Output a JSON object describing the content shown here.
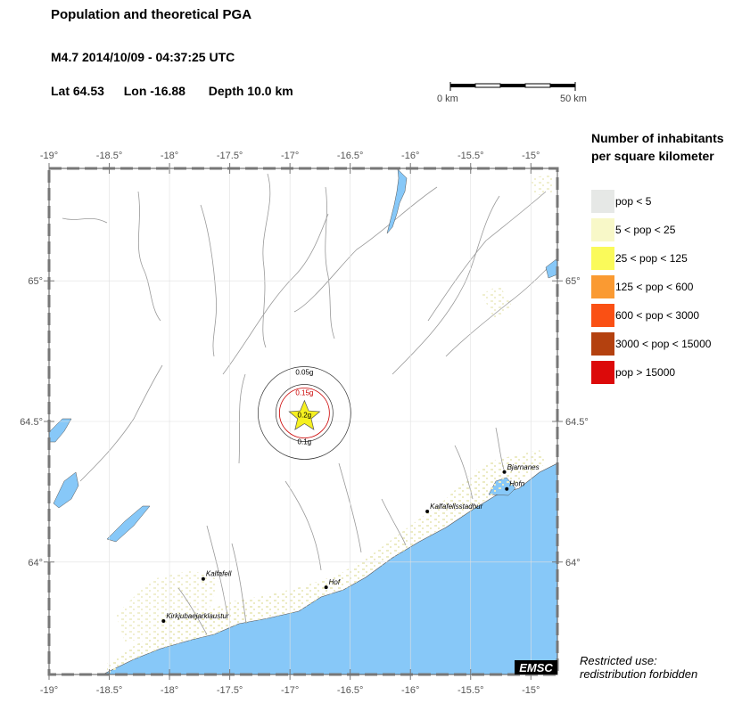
{
  "header": {
    "title": "Population and theoretical PGA",
    "event": "M4.7  2014/10/09 - 04:37:25 UTC",
    "lat": "Lat 64.53",
    "lon": "Lon -16.88",
    "depth": "Depth  10.0 km"
  },
  "scale": {
    "start": "0 km",
    "end": "50 km"
  },
  "axes": {
    "lon_ticks": [
      "-19°",
      "-18.5°",
      "-18°",
      "-17.5°",
      "-17°",
      "-16.5°",
      "-16°",
      "-15.5°",
      "-15°"
    ],
    "lat_ticks": [
      "65°",
      "64.5°",
      "64°"
    ]
  },
  "epicenter": {
    "lat": 64.53,
    "lon": -16.88
  },
  "pga_contours": [
    {
      "label": "0.05g",
      "color": "#000000"
    },
    {
      "label": "0.15g",
      "color": "#cc0000"
    },
    {
      "label": "0.2g",
      "color": "#000000"
    },
    {
      "label": "0.1g",
      "color": "#000000"
    }
  ],
  "towns": [
    {
      "name": "Bjarnanes",
      "lat": 64.32,
      "lon": -15.22
    },
    {
      "name": "Hofn",
      "lat": 64.26,
      "lon": -15.2
    },
    {
      "name": "Kalfafellsstadhur",
      "lat": 64.18,
      "lon": -15.86
    },
    {
      "name": "Hof",
      "lat": 63.91,
      "lon": -16.7
    },
    {
      "name": "Kalfafell",
      "lat": 63.94,
      "lon": -17.72
    },
    {
      "name": "Kirkjubaejarklaustur",
      "lat": 63.79,
      "lon": -18.05
    }
  ],
  "legend": {
    "title_line1": "Number of inhabitants",
    "title_line2": "per square kilometer",
    "items": [
      {
        "label": "pop < 5",
        "color": "#e6e8e6"
      },
      {
        "label": "5 < pop < 25",
        "color": "#f8f8c8"
      },
      {
        "label": "25 < pop < 125",
        "color": "#fafa5a"
      },
      {
        "label": "125 < pop < 600",
        "color": "#fa9a32"
      },
      {
        "label": "600 < pop < 3000",
        "color": "#fa5014"
      },
      {
        "label": "3000 < pop < 15000",
        "color": "#b4410f"
      },
      {
        "label": "pop > 15000",
        "color": "#dc0a0a"
      }
    ]
  },
  "logo": "EMSC",
  "notice": {
    "line1": "Restricted use:",
    "line2": "redistribution forbidden"
  },
  "colors": {
    "sea": "#87c8f8",
    "land": "#ffffff",
    "river": "#999999",
    "frame": "#555555"
  }
}
